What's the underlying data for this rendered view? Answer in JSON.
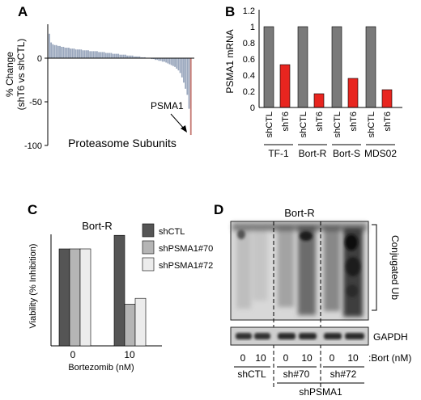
{
  "chart_data": [
    {
      "panel": "A",
      "type": "bar",
      "xlabel": "Proteasome Subunits",
      "ylabel_line1": "% Change",
      "ylabel_line2": "(shT6 vs shCTL)",
      "yticks": [
        "0",
        "-50",
        "-100"
      ],
      "ylim": [
        -100,
        35
      ],
      "annotation": "PSMA1",
      "values": [
        28,
        18,
        16,
        15,
        15,
        14,
        14,
        13,
        13,
        12,
        12,
        12,
        11,
        11,
        11,
        10,
        10,
        10,
        10,
        9,
        9,
        9,
        9,
        8,
        8,
        8,
        8,
        8,
        7,
        7,
        7,
        7,
        6,
        6,
        6,
        6,
        5,
        5,
        5,
        5,
        4,
        4,
        4,
        4,
        3,
        3,
        3,
        3,
        2,
        2,
        2,
        2,
        1,
        1,
        1,
        0,
        0,
        0,
        -1,
        -1,
        -2,
        -2,
        -3,
        -3,
        -4,
        -4,
        -5,
        -6,
        -7,
        -8,
        -9,
        -10,
        -12,
        -14,
        -17,
        -22,
        -28,
        -35,
        -42,
        -58,
        -88
      ],
      "highlight_index": 80,
      "colors": {
        "bar": "#9aa7bd",
        "highlight": "#c77b75"
      }
    },
    {
      "panel": "B",
      "type": "bar",
      "ylabel": "PSMA1 mRNA",
      "yticks": [
        "0",
        "0.2",
        "0.4",
        "0.6",
        "0.8",
        "1",
        "1.2"
      ],
      "ylim": [
        0,
        1.2
      ],
      "categories": [
        "shCTL",
        "shT6",
        "shCTL",
        "shT6",
        "shCTL",
        "shT6",
        "shCTL",
        "shT6"
      ],
      "values": [
        1.0,
        0.53,
        1.0,
        0.17,
        1.0,
        0.36,
        1.0,
        0.22
      ],
      "groups": [
        "TF-1",
        "Bort-R",
        "Bort-S",
        "MDS02"
      ],
      "colors": {
        "shCTL": "#7a7a7a",
        "shT6": "#e8251f"
      }
    },
    {
      "panel": "C",
      "type": "bar",
      "title": "Bort-R",
      "ylabel": "Viability (% Inhibition)",
      "xlabel": "Bortezomib (nM)",
      "categories": [
        "0",
        "10"
      ],
      "ylim": [
        0,
        120
      ],
      "series": [
        {
          "name": "shCTL",
          "values": [
            100,
            114
          ],
          "color": "#555555"
        },
        {
          "name": "shPSMA1#70",
          "values": [
            100,
            43
          ],
          "color": "#b5b5b5"
        },
        {
          "name": "shPSMA1#72",
          "values": [
            100,
            49
          ],
          "color": "#ececec"
        }
      ]
    }
  ],
  "panels": {
    "a_letter": "A",
    "b_letter": "B",
    "c_letter": "C",
    "d_letter": "D"
  },
  "blot": {
    "title": "Bort-R",
    "bracket_label": "Conjugated Ub",
    "loading_label": "GAPDH",
    "dose_labels": [
      "0",
      "10",
      "0",
      "10",
      "0",
      "10"
    ],
    "dose_unit": ":Bort (nM)",
    "group_labels": [
      "shCTL",
      "sh#70",
      "sh#72"
    ],
    "super_label": "shPSMA1"
  }
}
